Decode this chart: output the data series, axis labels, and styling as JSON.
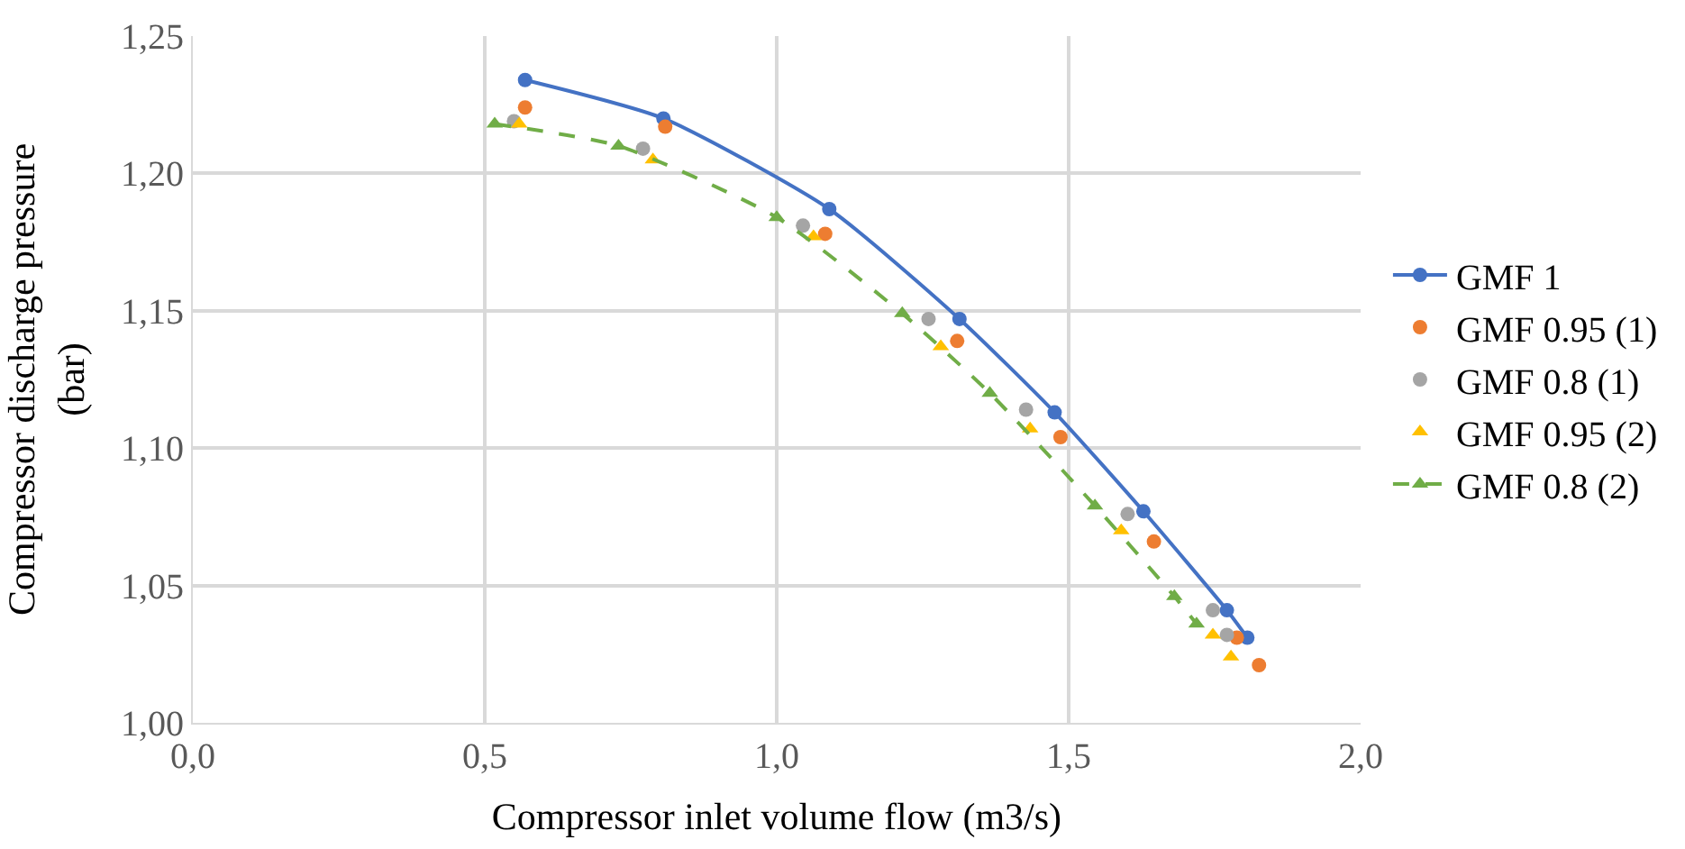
{
  "chart_data": {
    "type": "scatter",
    "xlabel": "Compressor inlet volume flow (m3/s)",
    "ylabel": "Compressor discharge pressure\n(bar)",
    "xlim": [
      0,
      2
    ],
    "ylim": [
      1.0,
      1.25
    ],
    "xticks": [
      {
        "value": 0,
        "label": "0,0"
      },
      {
        "value": 0.5,
        "label": "0,5"
      },
      {
        "value": 1.0,
        "label": "1,0"
      },
      {
        "value": 1.5,
        "label": "1,5"
      },
      {
        "value": 2.0,
        "label": "2,0"
      }
    ],
    "yticks": [
      {
        "value": 1.0,
        "label": "1,00"
      },
      {
        "value": 1.05,
        "label": "1,05"
      },
      {
        "value": 1.1,
        "label": "1,10"
      },
      {
        "value": 1.15,
        "label": "1,15"
      },
      {
        "value": 1.2,
        "label": "1,20"
      },
      {
        "value": 1.25,
        "label": "1,25"
      }
    ],
    "grid": true,
    "legend": "right",
    "series": [
      {
        "name": "GMF 1",
        "type": "line",
        "color": "#4472c4",
        "marker": "circle",
        "line_style": "solid",
        "x": [
          0.569,
          0.806,
          1.09,
          1.313,
          1.476,
          1.628,
          1.771,
          1.806
        ],
        "values": [
          1.234,
          1.22,
          1.187,
          1.147,
          1.113,
          1.077,
          1.041,
          1.031
        ]
      },
      {
        "name": "GMF 0.95 (1)",
        "color": "#ed7d31",
        "marker": "circle",
        "x": [
          0.569,
          0.809,
          1.083,
          1.309,
          1.486,
          1.646,
          1.788,
          1.826
        ],
        "values": [
          1.224,
          1.217,
          1.178,
          1.139,
          1.104,
          1.066,
          1.031,
          1.021
        ]
      },
      {
        "name": "GMF 0.8 (1)",
        "color": "#a5a5a5",
        "marker": "circle",
        "x": [
          0.55,
          0.771,
          1.045,
          1.26,
          1.427,
          1.601,
          1.747,
          1.771
        ],
        "values": [
          1.219,
          1.209,
          1.181,
          1.147,
          1.114,
          1.076,
          1.041,
          1.032
        ]
      },
      {
        "name": "GMF 0.95 (2)",
        "color": "#ffc000",
        "marker": "triangle",
        "x": [
          0.559,
          0.788,
          1.063,
          1.281,
          1.434,
          1.59,
          1.747,
          1.778
        ],
        "values": [
          1.218,
          1.205,
          1.177,
          1.137,
          1.107,
          1.07,
          1.032,
          1.024
        ]
      },
      {
        "name": "GMF 0.8 (2)",
        "type": "line",
        "color": "#70ad47",
        "marker": "triangle",
        "line_style": "dashed",
        "x": [
          0.517,
          0.729,
          1.0,
          1.215,
          1.365,
          1.545,
          1.681,
          1.719
        ],
        "values": [
          1.218,
          1.21,
          1.184,
          1.149,
          1.12,
          1.079,
          1.046,
          1.036
        ]
      }
    ]
  }
}
